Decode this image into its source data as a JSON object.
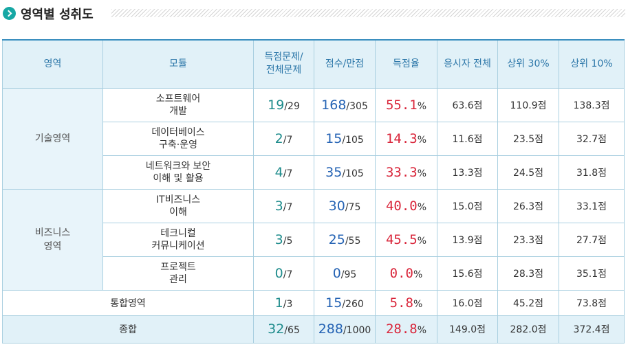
{
  "section": {
    "title": "영역별 성취도"
  },
  "headers": [
    "영역",
    "모듈",
    "득점문제/\n전체문제",
    "점수/만점",
    "득점율",
    "응시자 전체",
    "상위 30%",
    "상위 10%"
  ],
  "categories": {
    "tech": "기술영역",
    "biz": "비즈니스\n영역"
  },
  "rows": [
    {
      "module": "소프트웨어\n개발",
      "got": "19",
      "total": "/29",
      "score": "168",
      "max": "/305",
      "rate": "55.1",
      "all": "63.6점",
      "top30": "110.9점",
      "top10": "138.3점"
    },
    {
      "module": "데이터베이스\n구축·운영",
      "got": "2",
      "total": "/7",
      "score": "15",
      "max": "/105",
      "rate": "14.3",
      "all": "11.6점",
      "top30": "23.5점",
      "top10": "32.7점"
    },
    {
      "module": "네트워크와 보안\n이해 및 활용",
      "got": "4",
      "total": "/7",
      "score": "35",
      "max": "/105",
      "rate": "33.3",
      "all": "13.3점",
      "top30": "24.5점",
      "top10": "31.8점"
    },
    {
      "module": "IT비즈니스\n이해",
      "got": "3",
      "total": "/7",
      "score": "30",
      "max": "/75",
      "rate": "40.0",
      "all": "15.0점",
      "top30": "26.3점",
      "top10": "33.1점"
    },
    {
      "module": "테크니컬\n커뮤니케이션",
      "got": "3",
      "total": "/5",
      "score": "25",
      "max": "/55",
      "rate": "45.5",
      "all": "13.9점",
      "top30": "23.3점",
      "top10": "27.7점"
    },
    {
      "module": "프로젝트\n관리",
      "got": "0",
      "total": "/7",
      "score": "0",
      "max": "/95",
      "rate": "0.0",
      "all": "15.6점",
      "top30": "28.3점",
      "top10": "35.1점"
    }
  ],
  "integrated": {
    "label": "통합영역",
    "got": "1",
    "total": "/3",
    "score": "15",
    "max": "/260",
    "rate": "5.8",
    "all": "16.0점",
    "top30": "45.2점",
    "top10": "73.8점"
  },
  "total": {
    "label": "종합",
    "got": "32",
    "total": "/65",
    "score": "288",
    "max": "/1000",
    "rate": "28.8",
    "all": "149.0점",
    "top30": "282.0점",
    "top10": "372.4점"
  },
  "percent_sign": "%",
  "colors": {
    "accent": "#16a7a4",
    "header_bg": "#e1f1f8",
    "border": "#a9cfe0",
    "teal": "#1f8c8c",
    "blue": "#2563b4",
    "red": "#d9253a"
  }
}
